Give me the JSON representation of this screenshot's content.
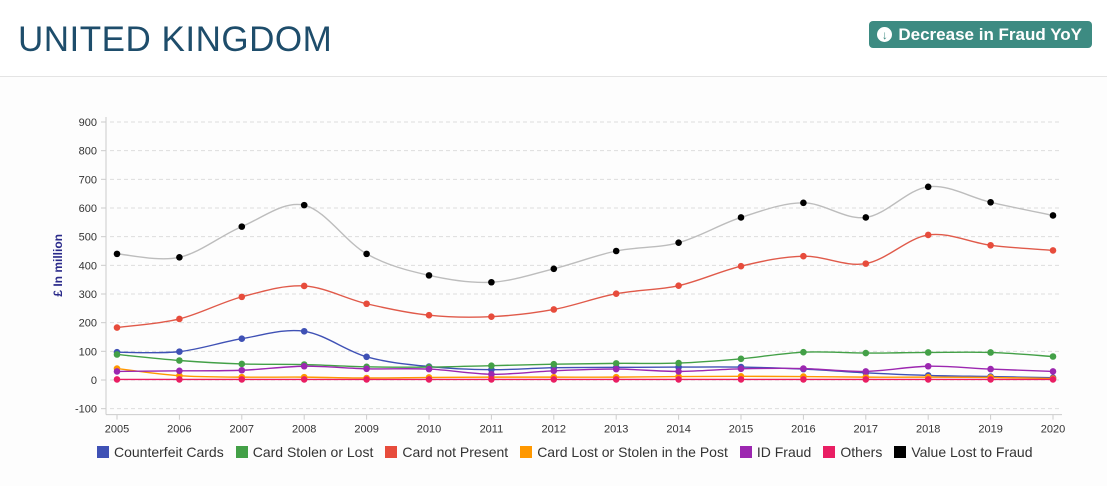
{
  "header": {
    "title": "UNITED KINGDOM",
    "badge_label": "Decrease in Fraud YoY",
    "badge_icon": "arrow-down-circle-icon"
  },
  "chart_data": {
    "type": "line",
    "ylabel": "£ In million",
    "ylim": [
      -100,
      900
    ],
    "yticks": [
      -100,
      0,
      100,
      200,
      300,
      400,
      500,
      600,
      700,
      800,
      900
    ],
    "grid": true,
    "legend_position": "bottom",
    "x": [
      "2005",
      "2006",
      "2007",
      "2008",
      "2009",
      "2010",
      "2011",
      "2012",
      "2013",
      "2014",
      "2015",
      "2016",
      "2017",
      "2018",
      "2019",
      "2020"
    ],
    "series": [
      {
        "name": "Counterfeit Cards",
        "color": "#3f51b5",
        "values": [
          97,
          99,
          144,
          170,
          81,
          47,
          36,
          43,
          44,
          45,
          45,
          38,
          25,
          16,
          12,
          8
        ]
      },
      {
        "name": "Card Stolen or Lost",
        "color": "#43a047",
        "values": [
          89,
          68,
          56,
          54,
          46,
          45,
          50,
          55,
          58,
          59,
          74,
          97,
          94,
          96,
          96,
          82
        ]
      },
      {
        "name": "Card not Present",
        "color": "#e74c3c",
        "line_color": "#e05a4a",
        "values": [
          183,
          213,
          290,
          328,
          266,
          226,
          221,
          246,
          301,
          329,
          397,
          432,
          406,
          506,
          470,
          452
        ]
      },
      {
        "name": "Card Lost or Stolen in the Post",
        "color": "#ff9800",
        "values": [
          40,
          15,
          10,
          10,
          7,
          9,
          10,
          10,
          10,
          12,
          13,
          12,
          10,
          10,
          9,
          5
        ]
      },
      {
        "name": "ID Fraud",
        "color": "#9c27b0",
        "values": [
          30,
          32,
          34,
          48,
          39,
          38,
          20,
          32,
          38,
          30,
          39,
          40,
          30,
          48,
          38,
          30
        ]
      },
      {
        "name": "Others",
        "color": "#e91e63",
        "values": [
          2,
          2,
          2,
          2,
          2,
          2,
          2,
          2,
          2,
          2,
          2,
          2,
          2,
          2,
          2,
          2
        ]
      },
      {
        "name": "Value Lost to Fraud",
        "color": "#000000",
        "line_color": "#bdbdbd",
        "values": [
          440,
          428,
          535,
          610,
          440,
          365,
          341,
          388,
          450,
          479,
          567,
          618,
          567,
          674,
          620,
          574
        ]
      }
    ]
  }
}
